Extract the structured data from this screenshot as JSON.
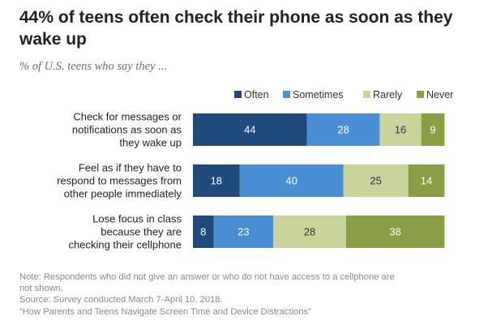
{
  "title": "44% of teens often check their phone as soon as they wake up",
  "subtitle": "% of U.S. teens who say they ...",
  "chart_data": {
    "type": "bar",
    "orientation": "horizontal",
    "stacked": true,
    "xlim": [
      0,
      100
    ],
    "legend_position": "top-right",
    "grid": false,
    "categories": [
      [
        "Check for messages or",
        "notifications as soon as",
        "they wake up"
      ],
      [
        "Feel as if they have to",
        "respond to messages from",
        "other people immediately"
      ],
      [
        "Lose focus in class",
        "because they are",
        "checking their cellphone"
      ]
    ],
    "series": [
      {
        "name": "Often",
        "color": "#1f4a7c",
        "values": [
          44,
          18,
          8
        ]
      },
      {
        "name": "Sometimes",
        "color": "#4a8fd3",
        "values": [
          28,
          40,
          23
        ]
      },
      {
        "name": "Rarely",
        "color": "#c7d59a",
        "values": [
          16,
          25,
          28
        ]
      },
      {
        "name": "Never",
        "color": "#8a9e46",
        "values": [
          9,
          14,
          38
        ]
      }
    ]
  },
  "notes": {
    "note_line1": "Note: Respondents who did not give an answer or who do not have access to a cellphone are",
    "note_line2": "not shown.",
    "source": "Source: Survey conducted March 7-April 10, 2018.",
    "report": "“How Parents and Teens Navigate Screen Time and Device Distractions”"
  }
}
